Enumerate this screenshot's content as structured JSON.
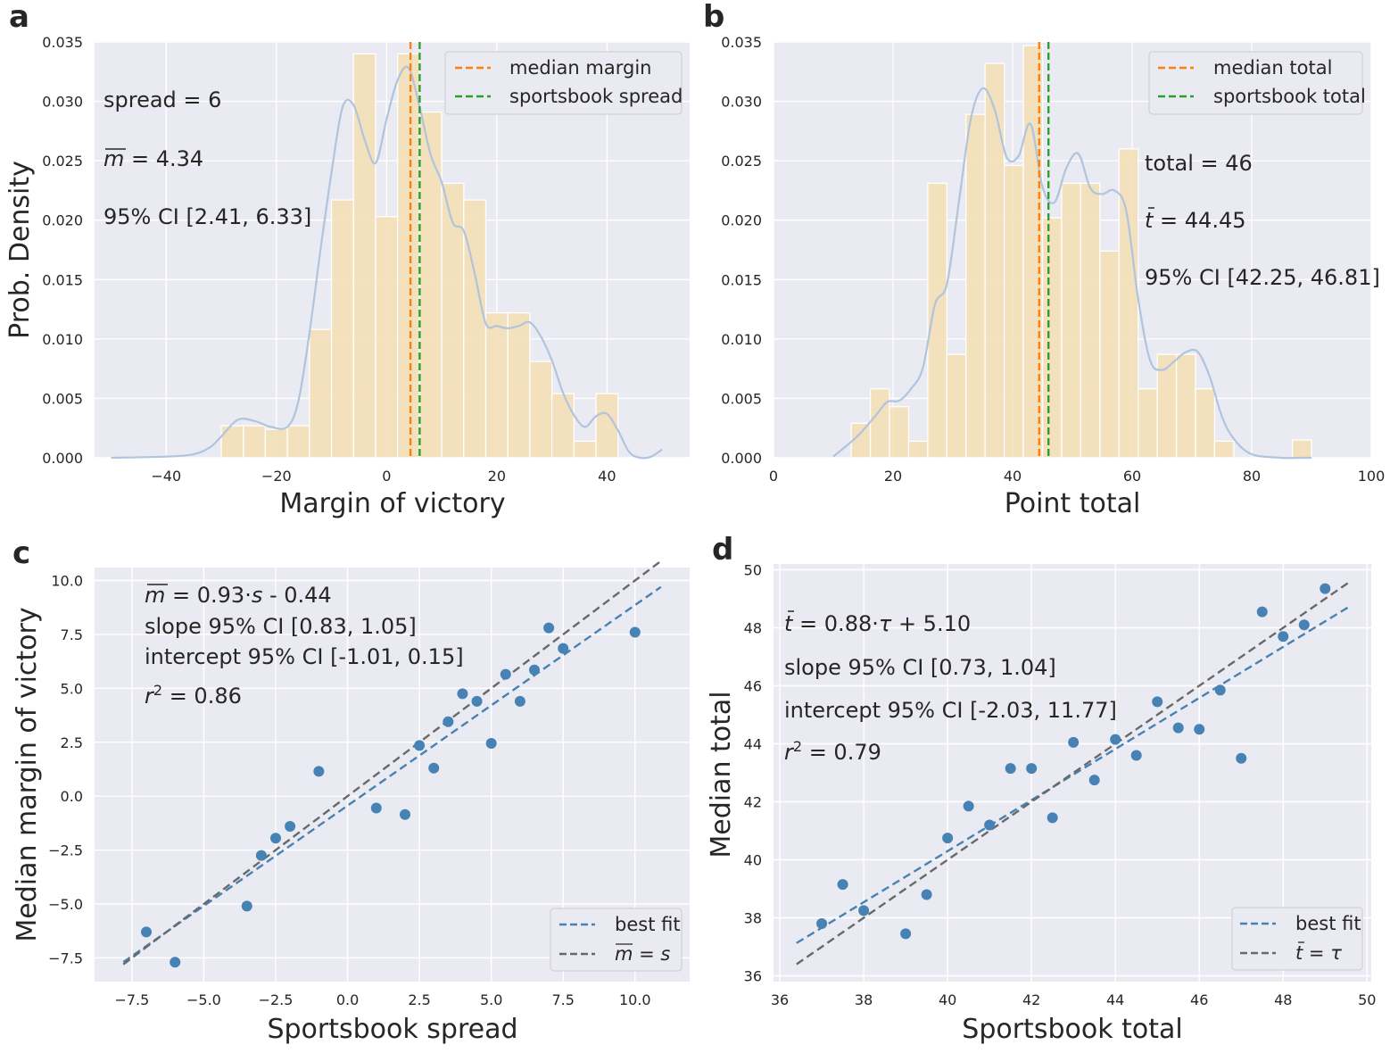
{
  "figure": {
    "panel_letters": [
      "a",
      "b",
      "c",
      "d"
    ]
  },
  "chart_data": [
    {
      "panel": "a",
      "type": "histogram",
      "xlabel": "Margin of victory",
      "ylabel": "Prob. Density",
      "xlim": [
        -53,
        55
      ],
      "ylim": [
        0,
        0.035
      ],
      "xticks": [
        -40,
        -20,
        0,
        20,
        40
      ],
      "xtick_labels": [
        "−40",
        "−20",
        "0",
        "20",
        "40"
      ],
      "yticks": [
        0,
        0.005,
        0.01,
        0.015,
        0.02,
        0.025,
        0.03,
        0.035
      ],
      "ytick_labels": [
        "0.000",
        "0.005",
        "0.010",
        "0.015",
        "0.020",
        "0.025",
        "0.030",
        "0.035"
      ],
      "bin_edges": [
        -30,
        -26,
        -22,
        -18,
        -14,
        -10,
        -6,
        -2,
        2,
        6,
        10,
        14,
        18,
        22,
        26,
        30,
        34,
        38,
        42
      ],
      "density": [
        0.0027,
        0.0027,
        0.0024,
        0.0027,
        0.0108,
        0.0217,
        0.034,
        0.0203,
        0.034,
        0.0291,
        0.0231,
        0.0217,
        0.0122,
        0.0122,
        0.0081,
        0.0054,
        0.0014,
        0.0054
      ],
      "kde_x": [
        -50,
        -40,
        -35,
        -32,
        -30,
        -27,
        -24,
        -21,
        -18,
        -16,
        -14,
        -12,
        -10,
        -8,
        -6,
        -4,
        -2,
        0,
        2,
        4,
        6,
        8,
        10,
        12,
        14,
        16,
        18,
        20,
        22,
        24,
        26,
        28,
        30,
        32,
        34,
        36,
        38,
        40,
        42,
        44,
        46,
        48,
        50
      ],
      "kde_y": [
        0,
        0.0001,
        0.0003,
        0.0009,
        0.0018,
        0.0032,
        0.0031,
        0.0026,
        0.0026,
        0.0048,
        0.0105,
        0.0175,
        0.024,
        0.0295,
        0.0297,
        0.0268,
        0.0248,
        0.0285,
        0.0318,
        0.0328,
        0.0295,
        0.0255,
        0.0232,
        0.0198,
        0.0191,
        0.0155,
        0.0113,
        0.0111,
        0.0109,
        0.0111,
        0.0114,
        0.0102,
        0.0082,
        0.0055,
        0.0036,
        0.0026,
        0.0035,
        0.0037,
        0.0023,
        0.0005,
        0.0,
        0.0001,
        0.0007
      ],
      "vlines": [
        {
          "name": "median margin",
          "x": 4.34,
          "color": "#ff7f0e"
        },
        {
          "name": "sportsbook spread",
          "x": 6,
          "color": "#2ca02c"
        }
      ],
      "annotations": [
        "spread = 6",
        "m = 4.34",
        "95% CI [2.41, 6.33]"
      ],
      "legend_position": "top-right",
      "grid": true,
      "bar_color": "#f5deb3",
      "kde_color": "#b0c4de"
    },
    {
      "panel": "b",
      "type": "histogram",
      "xlabel": "Point total",
      "ylabel": "",
      "xlim": [
        0,
        100
      ],
      "ylim": [
        0,
        0.035
      ],
      "xticks": [
        0,
        20,
        40,
        60,
        80,
        100
      ],
      "xtick_labels": [
        "0",
        "20",
        "40",
        "60",
        "80",
        "100"
      ],
      "yticks": [
        0,
        0.005,
        0.01,
        0.015,
        0.02,
        0.025,
        0.03,
        0.035
      ],
      "ytick_labels": [
        "0.000",
        "0.005",
        "0.010",
        "0.015",
        "0.020",
        "0.025",
        "0.030",
        "0.035"
      ],
      "bin_edges": [
        13,
        16.2,
        19.4,
        22.6,
        25.8,
        29,
        32.2,
        35.4,
        38.6,
        41.8,
        45,
        48.2,
        51.4,
        54.6,
        57.8,
        61,
        64.2,
        67.4,
        70.6,
        73.8,
        77
      ],
      "density": [
        0.0029,
        0.0058,
        0.0043,
        0.0014,
        0.0231,
        0.0087,
        0.0289,
        0.0332,
        0.0246,
        0.0347,
        0.0202,
        0.0231,
        0.0231,
        0.0174,
        0.026,
        0.0058,
        0.0087,
        0.0087,
        0.0058,
        0.0014
      ],
      "extra_bar": {
        "x0": 86.8,
        "x1": 90,
        "density": 0.0015
      },
      "kde_x": [
        10,
        14,
        17,
        19,
        21,
        23,
        25,
        27,
        29,
        31,
        33,
        35,
        37,
        39,
        41,
        43,
        45,
        47,
        49,
        51,
        53,
        55,
        57,
        59,
        61,
        63,
        65,
        67,
        69,
        71,
        73,
        75,
        77,
        80,
        85,
        88,
        90
      ],
      "kde_y": [
        0.0001,
        0.0018,
        0.0035,
        0.0047,
        0.0048,
        0.0058,
        0.0076,
        0.0129,
        0.0146,
        0.0215,
        0.0285,
        0.0311,
        0.0293,
        0.0253,
        0.0254,
        0.0281,
        0.0228,
        0.0215,
        0.0244,
        0.0256,
        0.0227,
        0.0222,
        0.0225,
        0.0208,
        0.0134,
        0.0082,
        0.0074,
        0.0081,
        0.0089,
        0.0089,
        0.0068,
        0.0035,
        0.0016,
        0.0003,
        0.0,
        0.0,
        0.0
      ],
      "vlines": [
        {
          "name": "median total",
          "x": 44.45,
          "color": "#ff7f0e"
        },
        {
          "name": "sportsbook total",
          "x": 46,
          "color": "#2ca02c"
        }
      ],
      "annotations": [
        "total = 46",
        "t = 44.45",
        "95% CI [42.25, 46.81]"
      ],
      "legend_position": "top-right",
      "grid": true,
      "bar_color": "#f5deb3",
      "kde_color": "#b0c4de"
    },
    {
      "panel": "c",
      "type": "scatter",
      "xlabel": "Sportsbook spread",
      "ylabel": "Median margin of victory",
      "xlim": [
        -8.8,
        11.9
      ],
      "ylim": [
        -8.6,
        10.6
      ],
      "xticks": [
        -7.5,
        -5,
        -2.5,
        0,
        2.5,
        5,
        7.5,
        10
      ],
      "xtick_labels": [
        "−7.5",
        "−5.0",
        "−2.5",
        "0.0",
        "2.5",
        "5.0",
        "7.5",
        "10.0"
      ],
      "yticks": [
        -7.5,
        -5,
        -2.5,
        0,
        2.5,
        5,
        7.5,
        10
      ],
      "ytick_labels": [
        "−7.5",
        "−5.0",
        "−2.5",
        "0.0",
        "2.5",
        "5.0",
        "7.5",
        "10.0"
      ],
      "points": [
        {
          "x": -7,
          "y": -6.3
        },
        {
          "x": -6,
          "y": -7.7
        },
        {
          "x": -3.5,
          "y": -5.1
        },
        {
          "x": -3,
          "y": -2.75
        },
        {
          "x": -2.5,
          "y": -1.95
        },
        {
          "x": -2,
          "y": -1.4
        },
        {
          "x": -1,
          "y": 1.15
        },
        {
          "x": 1,
          "y": -0.55
        },
        {
          "x": 2,
          "y": -0.85
        },
        {
          "x": 2.5,
          "y": 2.35
        },
        {
          "x": 3,
          "y": 1.3
        },
        {
          "x": 3.5,
          "y": 3.45
        },
        {
          "x": 4,
          "y": 4.75
        },
        {
          "x": 4.5,
          "y": 4.4
        },
        {
          "x": 5,
          "y": 2.45
        },
        {
          "x": 5.5,
          "y": 5.65
        },
        {
          "x": 6,
          "y": 4.4
        },
        {
          "x": 6.5,
          "y": 5.85
        },
        {
          "x": 7,
          "y": 7.8
        },
        {
          "x": 7.5,
          "y": 6.85
        },
        {
          "x": 10,
          "y": 7.6
        }
      ],
      "lines": [
        {
          "name": "best fit",
          "x": [
            -7.8,
            10.9
          ],
          "y": [
            -7.695,
            9.697
          ],
          "color": "#4682b4"
        },
        {
          "name": "m = s",
          "x": [
            -7.8,
            10.9
          ],
          "y": [
            -7.8,
            10.9
          ],
          "color": "#696969"
        }
      ],
      "annotations": [
        "m = 0.93·s  - 0.44",
        "slope 95% CI [0.83, 1.05]",
        "intercept 95% CI [-1.01, 0.15]",
        "r2 = 0.86"
      ],
      "legend_position": "bottom-right",
      "grid": true,
      "point_color": "#4682b4"
    },
    {
      "panel": "d",
      "type": "scatter",
      "xlabel": "Sportsbook total",
      "ylabel": "Median total",
      "xlim": [
        35.85,
        50.1
      ],
      "ylim": [
        35.8,
        50.2
      ],
      "xticks": [
        36,
        38,
        40,
        42,
        44,
        46,
        48,
        50
      ],
      "xtick_labels": [
        "36",
        "38",
        "40",
        "42",
        "44",
        "46",
        "48",
        "50"
      ],
      "yticks": [
        36,
        38,
        40,
        42,
        44,
        46,
        48,
        50
      ],
      "ytick_labels": [
        "36",
        "38",
        "40",
        "42",
        "44",
        "46",
        "48",
        "50"
      ],
      "points": [
        {
          "x": 37,
          "y": 37.8
        },
        {
          "x": 37.5,
          "y": 39.15
        },
        {
          "x": 38,
          "y": 38.25
        },
        {
          "x": 39,
          "y": 37.45
        },
        {
          "x": 39.5,
          "y": 38.8
        },
        {
          "x": 40,
          "y": 40.75
        },
        {
          "x": 40.5,
          "y": 41.85
        },
        {
          "x": 41,
          "y": 41.2
        },
        {
          "x": 41.5,
          "y": 43.15
        },
        {
          "x": 42,
          "y": 43.15
        },
        {
          "x": 42.5,
          "y": 41.45
        },
        {
          "x": 43,
          "y": 44.05
        },
        {
          "x": 43.5,
          "y": 42.75
        },
        {
          "x": 44,
          "y": 44.15
        },
        {
          "x": 44.5,
          "y": 43.6
        },
        {
          "x": 45,
          "y": 45.45
        },
        {
          "x": 45.5,
          "y": 44.55
        },
        {
          "x": 46,
          "y": 44.5
        },
        {
          "x": 46.5,
          "y": 45.85
        },
        {
          "x": 47,
          "y": 43.5
        },
        {
          "x": 47.5,
          "y": 48.55
        },
        {
          "x": 48,
          "y": 47.7
        },
        {
          "x": 48.5,
          "y": 48.1
        },
        {
          "x": 49,
          "y": 49.35
        }
      ],
      "lines": [
        {
          "name": "best fit",
          "x": [
            36.4,
            49.6
          ],
          "y": [
            37.13,
            48.75
          ],
          "color": "#4682b4"
        },
        {
          "name": "t = τ",
          "x": [
            36.4,
            49.6
          ],
          "y": [
            36.4,
            49.6
          ],
          "color": "#696969"
        }
      ],
      "annotations": [
        "t = 0.88·τ + 5.10",
        "slope 95% CI [0.73, 1.04]",
        "intercept 95% CI [-2.03, 11.77]",
        "r2 = 0.79"
      ],
      "legend_position": "bottom-right",
      "grid": true,
      "point_color": "#4682b4"
    }
  ]
}
